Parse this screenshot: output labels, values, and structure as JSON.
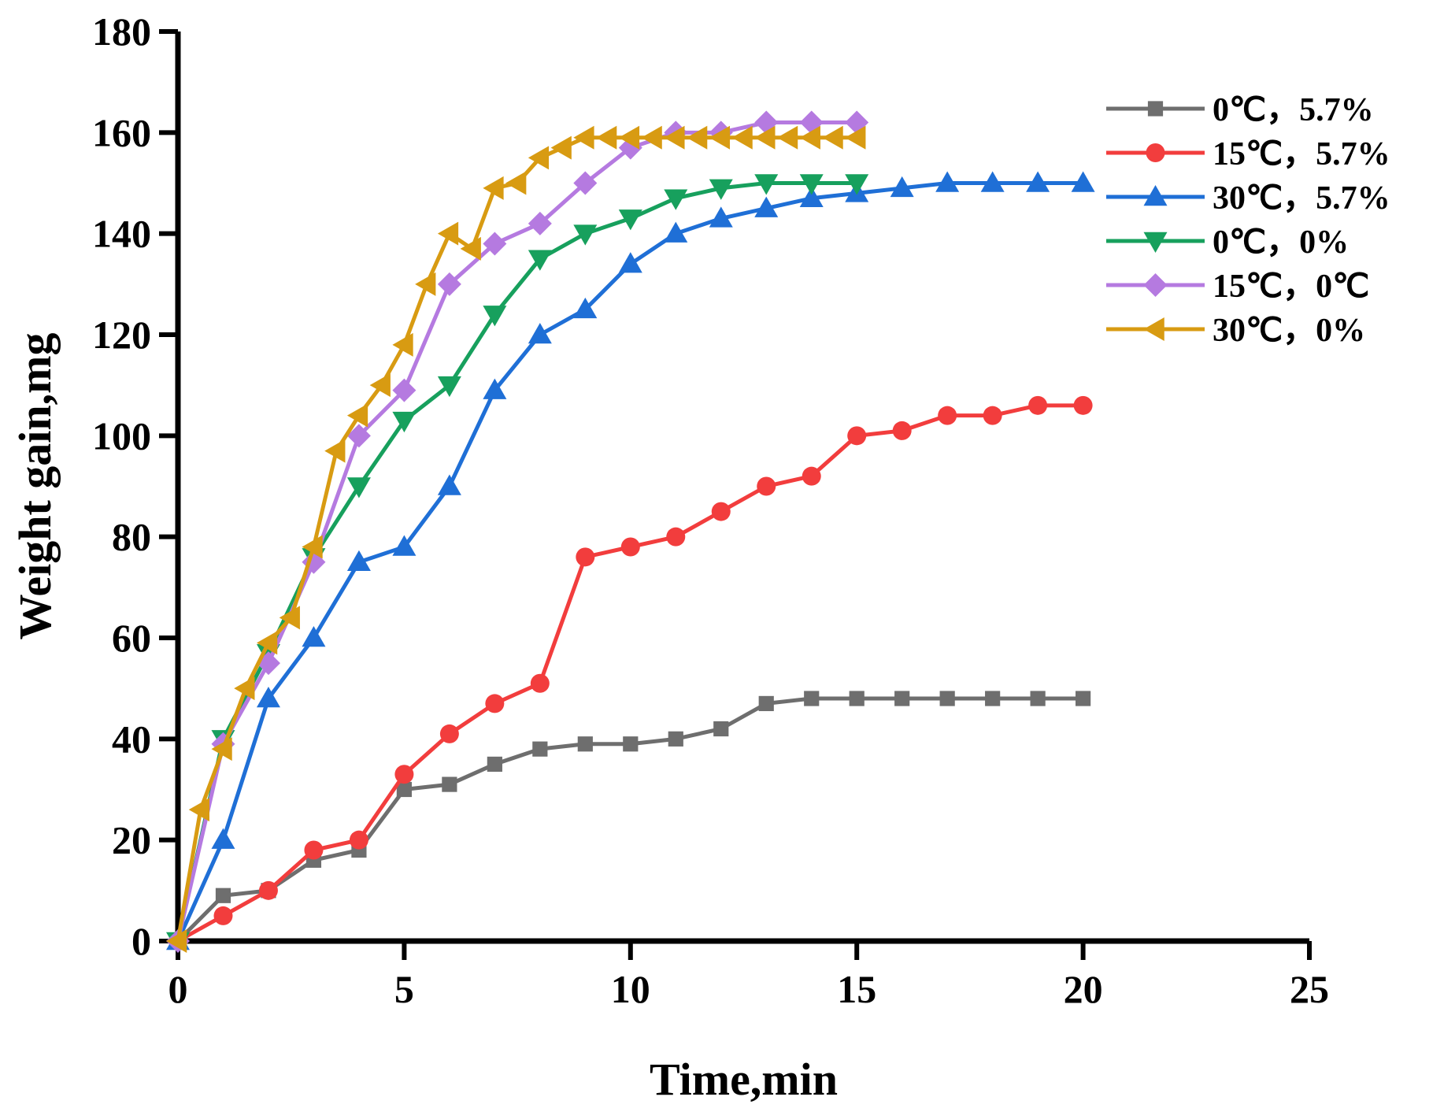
{
  "chart_data": {
    "type": "line",
    "xlabel": "Time,min",
    "ylabel": "Weight gain,mg",
    "xlim": [
      0,
      25
    ],
    "ylim": [
      0,
      180
    ],
    "xticks": [
      "0",
      "5",
      "10",
      "15",
      "20",
      "25"
    ],
    "yticks": [
      "0",
      "20",
      "40",
      "60",
      "80",
      "100",
      "120",
      "140",
      "160",
      "180"
    ],
    "grid": false,
    "legend_position": "top-right",
    "series": [
      {
        "name": "0℃，5.7%",
        "color": "#6e6e6e",
        "marker": "square",
        "points": [
          [
            0,
            0
          ],
          [
            1,
            9
          ],
          [
            2,
            10
          ],
          [
            3,
            16
          ],
          [
            4,
            18
          ],
          [
            5,
            30
          ],
          [
            6,
            31
          ],
          [
            7,
            35
          ],
          [
            8,
            38
          ],
          [
            9,
            39
          ],
          [
            10,
            39
          ],
          [
            11,
            40
          ],
          [
            12,
            42
          ],
          [
            13,
            47
          ],
          [
            14,
            48
          ],
          [
            15,
            48
          ],
          [
            16,
            48
          ],
          [
            17,
            48
          ],
          [
            18,
            48
          ],
          [
            19,
            48
          ],
          [
            20,
            48
          ]
        ]
      },
      {
        "name": "15℃，5.7%",
        "color": "#f23d3d",
        "marker": "circle",
        "points": [
          [
            0,
            0
          ],
          [
            1,
            5
          ],
          [
            2,
            10
          ],
          [
            3,
            18
          ],
          [
            4,
            20
          ],
          [
            5,
            33
          ],
          [
            6,
            41
          ],
          [
            7,
            47
          ],
          [
            8,
            51
          ],
          [
            9,
            76
          ],
          [
            10,
            78
          ],
          [
            11,
            80
          ],
          [
            12,
            85
          ],
          [
            13,
            90
          ],
          [
            14,
            92
          ],
          [
            15,
            100
          ],
          [
            16,
            101
          ],
          [
            17,
            104
          ],
          [
            18,
            104
          ],
          [
            19,
            106
          ],
          [
            20,
            106
          ]
        ]
      },
      {
        "name": "30℃，5.7%",
        "color": "#1f6fd6",
        "marker": "triangle-up",
        "points": [
          [
            0,
            0
          ],
          [
            1,
            20
          ],
          [
            2,
            48
          ],
          [
            3,
            60
          ],
          [
            4,
            75
          ],
          [
            5,
            78
          ],
          [
            6,
            90
          ],
          [
            7,
            109
          ],
          [
            8,
            120
          ],
          [
            9,
            125
          ],
          [
            10,
            134
          ],
          [
            11,
            140
          ],
          [
            12,
            143
          ],
          [
            13,
            145
          ],
          [
            14,
            147
          ],
          [
            15,
            148
          ],
          [
            16,
            149
          ],
          [
            17,
            150
          ],
          [
            18,
            150
          ],
          [
            19,
            150
          ],
          [
            20,
            150
          ]
        ]
      },
      {
        "name": "0℃，0%",
        "color": "#17a05d",
        "marker": "triangle-down",
        "points": [
          [
            0,
            0
          ],
          [
            1,
            40
          ],
          [
            2,
            57
          ],
          [
            3,
            76
          ],
          [
            4,
            90
          ],
          [
            5,
            103
          ],
          [
            6,
            110
          ],
          [
            7,
            124
          ],
          [
            8,
            135
          ],
          [
            9,
            140
          ],
          [
            10,
            143
          ],
          [
            11,
            147
          ],
          [
            12,
            149
          ],
          [
            13,
            150
          ],
          [
            14,
            150
          ],
          [
            15,
            150
          ]
        ]
      },
      {
        "name": "15℃，0℃",
        "color": "#b57ae0",
        "marker": "diamond",
        "points": [
          [
            0,
            0
          ],
          [
            1,
            39
          ],
          [
            2,
            55
          ],
          [
            3,
            75
          ],
          [
            4,
            100
          ],
          [
            5,
            109
          ],
          [
            6,
            130
          ],
          [
            7,
            138
          ],
          [
            8,
            142
          ],
          [
            9,
            150
          ],
          [
            10,
            157
          ],
          [
            11,
            160
          ],
          [
            12,
            160
          ],
          [
            13,
            162
          ],
          [
            14,
            162
          ],
          [
            15,
            162
          ]
        ]
      },
      {
        "name": "30℃，0%",
        "color": "#d89b12",
        "marker": "triangle-left",
        "points": [
          [
            0,
            0
          ],
          [
            0.5,
            26
          ],
          [
            1,
            38
          ],
          [
            1.5,
            50
          ],
          [
            2,
            59
          ],
          [
            2.5,
            64
          ],
          [
            3,
            78
          ],
          [
            3.5,
            97
          ],
          [
            4,
            104
          ],
          [
            4.5,
            110
          ],
          [
            5,
            118
          ],
          [
            5.5,
            130
          ],
          [
            6,
            140
          ],
          [
            6.5,
            137
          ],
          [
            7,
            149
          ],
          [
            7.5,
            150
          ],
          [
            8,
            155
          ],
          [
            8.5,
            157
          ],
          [
            9,
            159
          ],
          [
            9.5,
            159
          ],
          [
            10,
            159
          ],
          [
            10.5,
            159
          ],
          [
            11,
            159
          ],
          [
            11.5,
            159
          ],
          [
            12,
            159
          ],
          [
            12.5,
            159
          ],
          [
            13,
            159
          ],
          [
            13.5,
            159
          ],
          [
            14,
            159
          ],
          [
            14.5,
            159
          ],
          [
            15,
            159
          ]
        ]
      }
    ]
  }
}
